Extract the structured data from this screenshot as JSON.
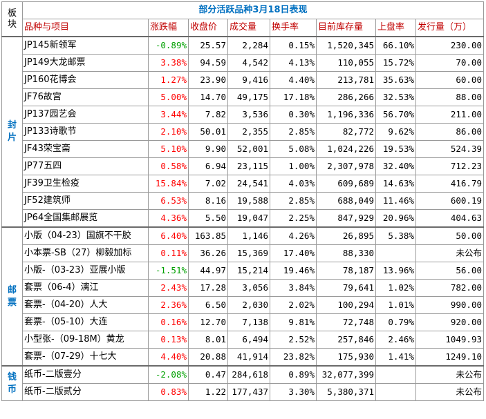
{
  "title": "部分活跃品种3月18日表现",
  "corner_label": "板块",
  "headers": [
    "品种与项目",
    "涨跌幅",
    "收盘价",
    "成交量",
    "换手率",
    "目前库存量",
    "上盘率",
    "发行量（万）"
  ],
  "sectors": [
    {
      "name": "封片",
      "rows": [
        {
          "name": "JP145新领军",
          "change": "-0.89%",
          "dir": "down",
          "close": "25.57",
          "volume": "2,284",
          "turnover": "0.15%",
          "stock": "1,520,345",
          "rate": "66.10%",
          "issue": "230.00"
        },
        {
          "name": "JP149大龙邮票",
          "change": "3.38%",
          "dir": "up",
          "close": "94.59",
          "volume": "4,542",
          "turnover": "4.13%",
          "stock": "110,055",
          "rate": "15.72%",
          "issue": "70.00"
        },
        {
          "name": "JP160花博会",
          "change": "1.27%",
          "dir": "up",
          "close": "23.90",
          "volume": "9,416",
          "turnover": "4.40%",
          "stock": "213,781",
          "rate": "35.63%",
          "issue": "60.00"
        },
        {
          "name": "JF76故宫",
          "change": "5.00%",
          "dir": "up",
          "close": "14.70",
          "volume": "49,175",
          "turnover": "17.18%",
          "stock": "286,266",
          "rate": "32.53%",
          "issue": "88.00"
        },
        {
          "name": "JP137园艺会",
          "change": "3.44%",
          "dir": "up",
          "close": "7.82",
          "volume": "3,536",
          "turnover": "0.30%",
          "stock": "1,196,336",
          "rate": "56.70%",
          "issue": "211.00"
        },
        {
          "name": "JP133诗歌节",
          "change": "2.10%",
          "dir": "up",
          "close": "50.01",
          "volume": "2,355",
          "turnover": "2.85%",
          "stock": "82,772",
          "rate": "9.62%",
          "issue": "86.00"
        },
        {
          "name": "JF43荣宝斋",
          "change": "5.10%",
          "dir": "up",
          "close": "9.90",
          "volume": "52,001",
          "turnover": "5.08%",
          "stock": "1,024,226",
          "rate": "19.53%",
          "issue": "524.39"
        },
        {
          "name": "JP77五四",
          "change": "0.58%",
          "dir": "up",
          "close": "6.94",
          "volume": "23,115",
          "turnover": "1.00%",
          "stock": "2,307,978",
          "rate": "32.40%",
          "issue": "712.23"
        },
        {
          "name": "JF39卫生检疫",
          "change": "15.84%",
          "dir": "up",
          "close": "7.02",
          "volume": "24,541",
          "turnover": "4.03%",
          "stock": "609,689",
          "rate": "14.63%",
          "issue": "416.79"
        },
        {
          "name": "JF52建筑师",
          "change": "6.53%",
          "dir": "up",
          "close": "8.16",
          "volume": "19,588",
          "turnover": "2.85%",
          "stock": "688,049",
          "rate": "11.46%",
          "issue": "600.19"
        },
        {
          "name": "JP64全国集邮展览",
          "change": "4.36%",
          "dir": "up",
          "close": "5.50",
          "volume": "19,047",
          "turnover": "2.25%",
          "stock": "847,929",
          "rate": "20.96%",
          "issue": "404.63"
        }
      ]
    },
    {
      "name": "邮票",
      "rows": [
        {
          "name": "小版（04-23）国旗不干胶",
          "change": "6.40%",
          "dir": "up",
          "close": "163.85",
          "volume": "1,146",
          "turnover": "4.26%",
          "stock": "26,895",
          "rate": "5.38%",
          "issue": "50.00"
        },
        {
          "name": "小本票-SB（27）柳毅加标",
          "change": "0.11%",
          "dir": "up",
          "close": "36.26",
          "volume": "15,369",
          "turnover": "17.40%",
          "stock": "88,330",
          "rate": "",
          "issue": "未公布"
        },
        {
          "name": "小版-（03-23）亚展小版",
          "change": "-1.51%",
          "dir": "down",
          "close": "44.97",
          "volume": "15,214",
          "turnover": "19.46%",
          "stock": "78,187",
          "rate": "13.96%",
          "issue": "56.00"
        },
        {
          "name": "套票（06-4）漓江",
          "change": "2.43%",
          "dir": "up",
          "close": "17.28",
          "volume": "3,056",
          "turnover": "3.84%",
          "stock": "79,641",
          "rate": "1.02%",
          "issue": "782.00"
        },
        {
          "name": "套票-（04-20）人大",
          "change": "2.36%",
          "dir": "up",
          "close": "6.50",
          "volume": "2,030",
          "turnover": "2.02%",
          "stock": "100,294",
          "rate": "1.01%",
          "issue": "990.00"
        },
        {
          "name": "套票-（05-10）大连",
          "change": "0.16%",
          "dir": "up",
          "close": "12.70",
          "volume": "7,138",
          "turnover": "9.81%",
          "stock": "72,748",
          "rate": "0.79%",
          "issue": "920.00"
        },
        {
          "name": "小型张-（09-18M）黄龙",
          "change": "0.13%",
          "dir": "up",
          "close": "8.01",
          "volume": "6,494",
          "turnover": "2.52%",
          "stock": "257,846",
          "rate": "2.46%",
          "issue": "1049.93"
        },
        {
          "name": "套票-（07-29）十七大",
          "change": "4.40%",
          "dir": "up",
          "close": "20.88",
          "volume": "41,914",
          "turnover": "23.82%",
          "stock": "175,930",
          "rate": "1.41%",
          "issue": "1249.10"
        }
      ]
    },
    {
      "name": "钱币",
      "rows": [
        {
          "name": "纸币-二版壹分",
          "change": "-2.08%",
          "dir": "down",
          "close": "0.47",
          "volume": "284,618",
          "turnover": "0.89%",
          "stock": "32,077,399",
          "rate": "",
          "issue": "未公布"
        },
        {
          "name": "纸币-二版贰分",
          "change": "0.83%",
          "dir": "up",
          "close": "1.22",
          "volume": "177,437",
          "turnover": "3.30%",
          "stock": "5,380,371",
          "rate": "",
          "issue": "未公布"
        }
      ]
    }
  ],
  "colors": {
    "up": "#ff0000",
    "down": "#00a000",
    "header_text": "#c00000",
    "title_text": "#0070c0"
  }
}
